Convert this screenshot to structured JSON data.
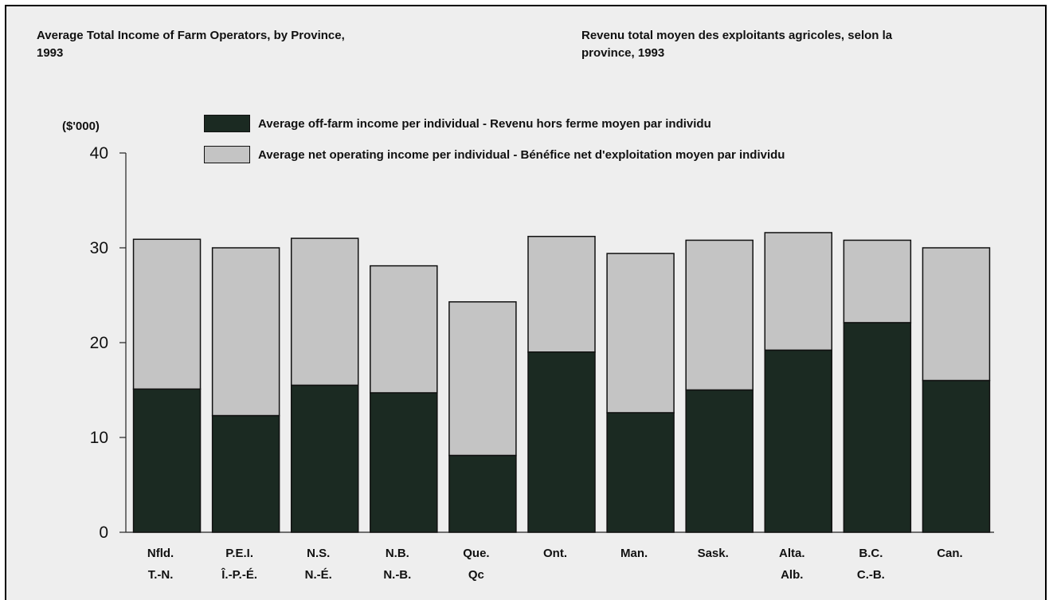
{
  "title_en": "Average Total Income of Farm Operators, by Province,\n1993",
  "title_fr": "Revenu total moyen des exploitants agricoles, selon la\nprovince,  1993",
  "chart_data": {
    "type": "bar",
    "stacked": true,
    "title": "Average Total Income of Farm Operators, by Province, 1993 / Revenu total moyen des exploitants agricoles, selon la province, 1993",
    "ylabel": "($'000)",
    "xlabel": "",
    "ylim": [
      0,
      40
    ],
    "yticks": [
      0,
      10,
      20,
      30,
      40
    ],
    "grid": false,
    "legend_position": "top",
    "categories": [
      [
        "Nfld.",
        "T.-N."
      ],
      [
        "P.E.I.",
        "Î.-P.-É."
      ],
      [
        "N.S.",
        "N.-É."
      ],
      [
        "N.B.",
        "N.-B."
      ],
      [
        "Que.",
        "Qc"
      ],
      [
        "Ont.",
        ""
      ],
      [
        "Man.",
        ""
      ],
      [
        "Sask.",
        ""
      ],
      [
        "Alta.",
        "Alb."
      ],
      [
        "B.C.",
        "C.-B."
      ],
      [
        "Can.",
        ""
      ]
    ],
    "series": [
      {
        "name": "Average off-farm income per individual - Revenu hors ferme moyen par individu",
        "color": "#1b2a22",
        "values": [
          15.1,
          12.3,
          15.5,
          14.7,
          8.1,
          19.0,
          12.6,
          15.0,
          19.2,
          22.1,
          16.0
        ]
      },
      {
        "name": "Average net operating income per individual - Bénéfice net d'exploitation moyen par individu",
        "color": "#c4c4c4",
        "values": [
          15.8,
          17.7,
          15.5,
          13.4,
          16.2,
          12.2,
          16.8,
          15.8,
          12.4,
          8.7,
          14.0
        ]
      }
    ]
  }
}
